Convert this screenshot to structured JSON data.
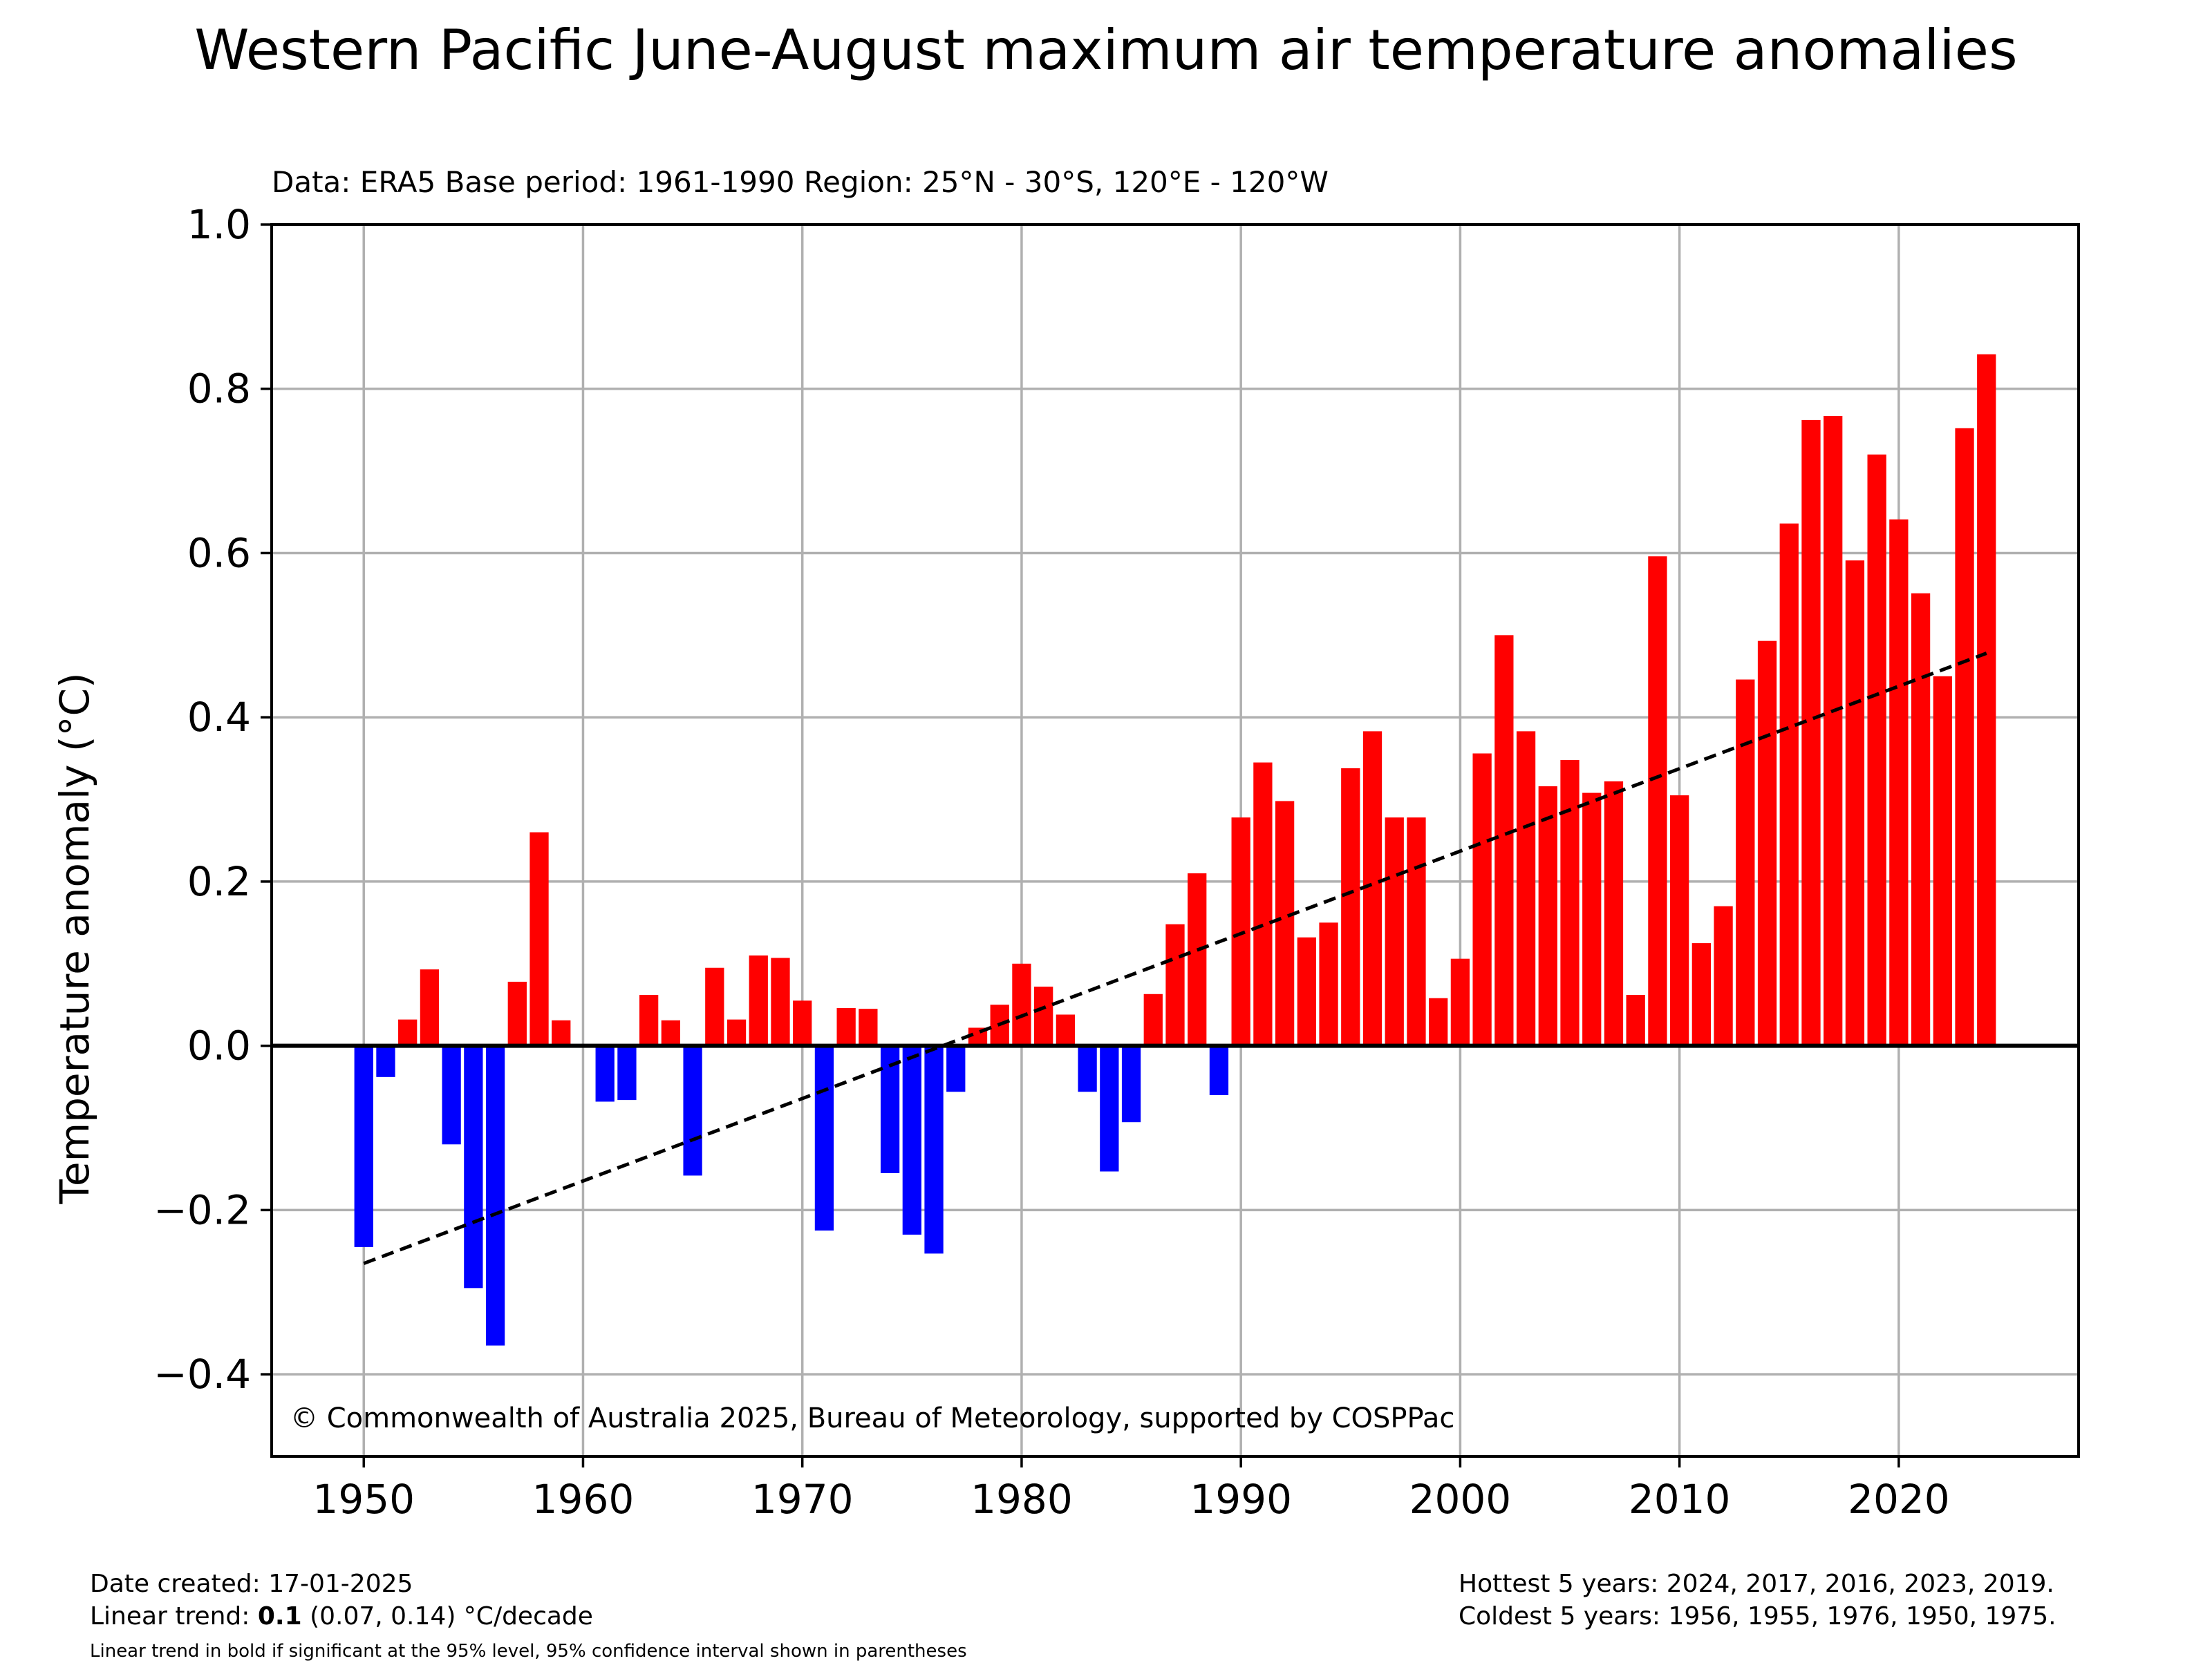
{
  "chart_data": {
    "type": "bar",
    "title": "Western Pacific June-August maximum air temperature anomalies",
    "subtitle": "Data: ERA5  Base period: 1961-1990  Region: 25°N - 30°S, 120°E - 120°W",
    "xlabel": "",
    "ylabel": "Temperature anomaly (°C)",
    "xlim": [
      1945.8,
      2028.2
    ],
    "ylim": [
      -0.5,
      1.0
    ],
    "xticks": [
      1950,
      1960,
      1970,
      1980,
      1990,
      2000,
      2010,
      2020
    ],
    "yticks": [
      -0.4,
      -0.2,
      0.0,
      0.2,
      0.4,
      0.6,
      0.8,
      1.0
    ],
    "ytick_labels": [
      "−0.4",
      "−0.2",
      "0.0",
      "0.2",
      "0.4",
      "0.6",
      "0.8",
      "1.0"
    ],
    "grid": true,
    "x": [
      1950,
      1951,
      1952,
      1953,
      1954,
      1955,
      1956,
      1957,
      1958,
      1959,
      1960,
      1961,
      1962,
      1963,
      1964,
      1965,
      1966,
      1967,
      1968,
      1969,
      1970,
      1971,
      1972,
      1973,
      1974,
      1975,
      1976,
      1977,
      1978,
      1979,
      1980,
      1981,
      1982,
      1983,
      1984,
      1985,
      1986,
      1987,
      1988,
      1989,
      1990,
      1991,
      1992,
      1993,
      1994,
      1995,
      1996,
      1997,
      1998,
      1999,
      2000,
      2001,
      2002,
      2003,
      2004,
      2005,
      2006,
      2007,
      2008,
      2009,
      2010,
      2011,
      2012,
      2013,
      2014,
      2015,
      2016,
      2017,
      2018,
      2019,
      2020,
      2021,
      2022,
      2023,
      2024
    ],
    "values": [
      -0.245,
      -0.038,
      0.032,
      0.093,
      -0.12,
      -0.295,
      -0.365,
      0.078,
      0.26,
      0.031,
      0.0,
      -0.068,
      -0.066,
      0.062,
      0.031,
      -0.158,
      0.095,
      0.032,
      0.11,
      0.107,
      0.055,
      -0.225,
      0.046,
      0.045,
      -0.155,
      -0.23,
      -0.253,
      -0.056,
      0.022,
      0.05,
      0.1,
      0.072,
      0.038,
      -0.056,
      -0.153,
      -0.093,
      0.063,
      0.148,
      0.21,
      -0.06,
      0.278,
      0.345,
      0.298,
      0.132,
      0.15,
      0.338,
      0.383,
      0.278,
      0.278,
      0.058,
      0.106,
      0.356,
      0.5,
      0.383,
      0.316,
      0.348,
      0.308,
      0.322,
      0.062,
      0.596,
      0.305,
      0.125,
      0.17,
      0.446,
      0.493,
      0.636,
      0.762,
      0.767,
      0.591,
      0.72,
      0.641,
      0.551,
      0.45,
      0.752,
      0.842
    ],
    "positive_color": "#ff0000",
    "negative_color": "#0000ff",
    "trend": {
      "x": [
        1950,
        2024
      ],
      "y": [
        -0.265,
        0.478
      ],
      "style": "dashed",
      "color": "#000000"
    },
    "annotation": "© Commonwealth of Australia 2025, Bureau of Meteorology, supported by COSPPac"
  },
  "footer": {
    "date_created": "Date created: 17-01-2025",
    "trend_prefix": "Linear trend: ",
    "trend_value": "0.1",
    "trend_suffix": " (0.07, 0.14) °C/decade",
    "trend_note": "Linear trend in bold if significant at the 95% level, 95% confidence interval shown in parentheses",
    "hottest": "Hottest 5 years: 2024, 2017, 2016, 2023, 2019.",
    "coldest": "Coldest 5 years: 1956, 1955, 1976, 1950, 1975."
  }
}
